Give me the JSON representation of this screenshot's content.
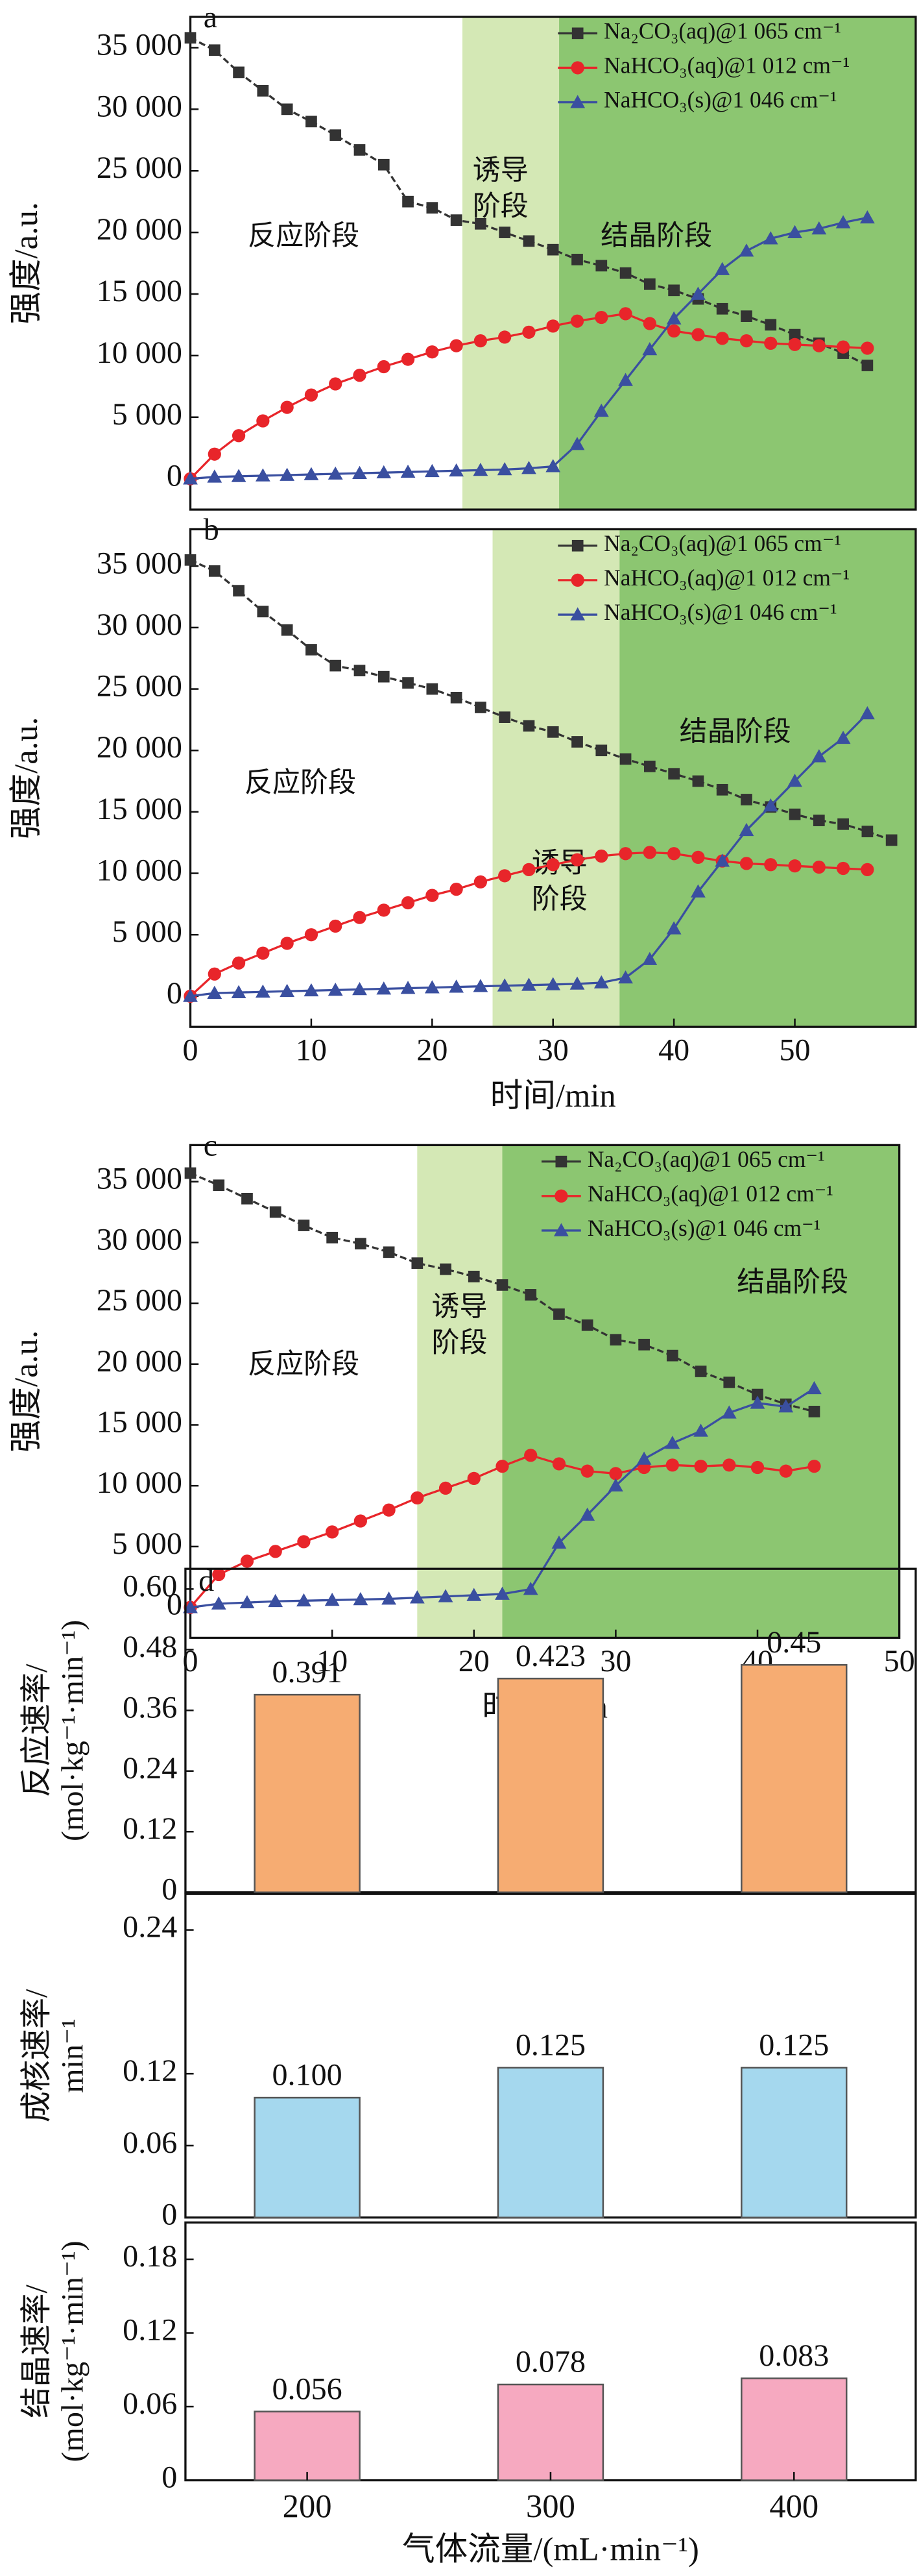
{
  "chart_data": [
    {
      "type": "line",
      "panel": "a",
      "ylabel": "强度/a.u.",
      "legend": "upper right",
      "x": [
        0,
        2,
        4,
        6,
        8,
        10,
        12,
        14,
        16,
        18,
        20,
        22,
        24,
        26,
        28,
        30,
        32,
        34,
        36,
        38,
        40,
        42,
        44,
        46,
        48,
        50,
        52,
        54,
        56
      ],
      "xlim": [
        0,
        60
      ],
      "ylim": [
        -2500,
        37500
      ],
      "yticks": [
        0,
        {
          "value": 5000,
          "label": "5 000"
        },
        {
          "value": 10000,
          "label": "10 000"
        },
        {
          "value": 15000,
          "label": "15 000"
        },
        {
          "value": 20000,
          "label": "20 000"
        },
        {
          "value": 25000,
          "label": "25 000"
        },
        {
          "value": 30000,
          "label": "30 000"
        },
        {
          "value": 35000,
          "label": "35 000"
        }
      ],
      "stages": [
        {
          "label": [
            "反应阶段"
          ],
          "x": [
            0,
            22.5
          ],
          "color": "#ffffff"
        },
        {
          "label": [
            "诱导",
            "阶段"
          ],
          "x": [
            22.5,
            30.5
          ],
          "color": "#d4e8b5"
        },
        {
          "label": [
            "结晶阶段"
          ],
          "x": [
            30.5,
            60
          ],
          "color": "#8cc671"
        }
      ],
      "series": [
        {
          "name": "Na₂CO₃(aq)@1 065 cm⁻¹",
          "color": "#333333",
          "marker": "square",
          "values": [
            35800,
            34800,
            33000,
            31500,
            30000,
            29000,
            27900,
            26700,
            25500,
            22500,
            22000,
            21000,
            20700,
            20000,
            19300,
            18600,
            17800,
            17300,
            16700,
            15800,
            15300,
            14600,
            13800,
            13200,
            12500,
            11700,
            11000,
            10200,
            9200
          ]
        },
        {
          "name": "NaHCO₃(aq)@1 012 cm⁻¹",
          "color": "#e8252a",
          "marker": "circle",
          "values": [
            0,
            2000,
            3500,
            4700,
            5800,
            6800,
            7700,
            8400,
            9100,
            9700,
            10300,
            10800,
            11200,
            11500,
            11900,
            12400,
            12800,
            13100,
            13400,
            12600,
            12000,
            11700,
            11400,
            11200,
            11000,
            10900,
            10800,
            10700,
            10600
          ]
        },
        {
          "name": "NaHCO₃(s)@1 046 cm⁻¹",
          "color": "#3a4fa0",
          "marker": "triangle",
          "values": [
            0,
            150,
            200,
            250,
            300,
            350,
            400,
            450,
            500,
            550,
            600,
            650,
            700,
            750,
            850,
            1000,
            2800,
            5500,
            8000,
            10500,
            13000,
            15000,
            17000,
            18500,
            19500,
            20000,
            20300,
            20800,
            21200
          ]
        }
      ]
    },
    {
      "type": "line",
      "panel": "b",
      "ylabel": "强度/a.u.",
      "xlabel": "时间/min",
      "legend": "upper right",
      "x": [
        0,
        2,
        4,
        6,
        8,
        10,
        12,
        14,
        16,
        18,
        20,
        22,
        24,
        26,
        28,
        30,
        32,
        34,
        36,
        38,
        40,
        42,
        44,
        46,
        48,
        50,
        52,
        54,
        56,
        58
      ],
      "xlim": [
        0,
        60
      ],
      "xticks": [
        0,
        10,
        20,
        30,
        40,
        50
      ],
      "ylim": [
        -2500,
        38000
      ],
      "yticks": [
        0,
        {
          "value": 5000,
          "label": "5 000"
        },
        {
          "value": 10000,
          "label": "10 000"
        },
        {
          "value": 15000,
          "label": "15 000"
        },
        {
          "value": 20000,
          "label": "20 000"
        },
        {
          "value": 25000,
          "label": "25 000"
        },
        {
          "value": 30000,
          "label": "30 000"
        },
        {
          "value": 35000,
          "label": "35 000"
        }
      ],
      "stages": [
        {
          "label": [
            "反应阶段"
          ],
          "x": [
            0,
            25
          ],
          "color": "#ffffff"
        },
        {
          "label": [
            "诱导",
            "阶段"
          ],
          "x": [
            25,
            35.5
          ],
          "color": "#d4e8b5"
        },
        {
          "label": [
            "结晶阶段"
          ],
          "x": [
            35.5,
            60
          ],
          "color": "#8cc671"
        }
      ],
      "series": [
        {
          "name": "Na₂CO₃(aq)@1 065 cm⁻¹",
          "color": "#333333",
          "marker": "square",
          "values": [
            35500,
            34600,
            33000,
            31300,
            29800,
            28200,
            26900,
            26500,
            26000,
            25500,
            25000,
            24300,
            23500,
            22700,
            22000,
            21500,
            20700,
            20000,
            19300,
            18700,
            18100,
            17500,
            16800,
            16000,
            15400,
            14800,
            14300,
            14000,
            13400,
            12700
          ]
        },
        {
          "name": "NaHCO₃(aq)@1 012 cm⁻¹",
          "color": "#e8252a",
          "marker": "circle",
          "values": [
            0,
            1800,
            2700,
            3500,
            4300,
            5000,
            5700,
            6400,
            7000,
            7600,
            8200,
            8700,
            9300,
            9800,
            10300,
            10700,
            11100,
            11400,
            11600,
            11700,
            11600,
            11300,
            11000,
            10800,
            10700,
            10600,
            10500,
            10400,
            10300,
            null
          ]
        },
        {
          "name": "NaHCO₃(s)@1 046 cm⁻¹",
          "color": "#3a4fa0",
          "marker": "triangle",
          "values": [
            0,
            250,
            300,
            350,
            400,
            450,
            500,
            550,
            600,
            650,
            700,
            750,
            800,
            850,
            900,
            950,
            1000,
            1100,
            1500,
            3000,
            5500,
            8500,
            11000,
            13500,
            15500,
            17500,
            19500,
            21000,
            23000,
            null
          ]
        }
      ]
    },
    {
      "type": "line",
      "panel": "c",
      "ylabel": "强度/a.u.",
      "xlabel": "时间/min",
      "legend": "upper right",
      "x": [
        0,
        2,
        4,
        6,
        8,
        10,
        12,
        14,
        16,
        18,
        20,
        22,
        24,
        26,
        28,
        30,
        32,
        34,
        36,
        38,
        40,
        42,
        44
      ],
      "xlim": [
        0,
        50
      ],
      "xticks": [
        0,
        10,
        20,
        30,
        40,
        50
      ],
      "ylim": [
        -2500,
        38000
      ],
      "yticks": [
        0,
        {
          "value": 5000,
          "label": "5 000"
        },
        {
          "value": 10000,
          "label": "10 000"
        },
        {
          "value": 15000,
          "label": "15 000"
        },
        {
          "value": 20000,
          "label": "20 000"
        },
        {
          "value": 25000,
          "label": "25 000"
        },
        {
          "value": 30000,
          "label": "30 000"
        },
        {
          "value": 35000,
          "label": "35 000"
        }
      ],
      "stages": [
        {
          "label": [
            "反应阶段"
          ],
          "x": [
            0,
            16
          ],
          "color": "#ffffff"
        },
        {
          "label": [
            "诱导",
            "阶段"
          ],
          "x": [
            16,
            22
          ],
          "color": "#d4e8b5"
        },
        {
          "label": [
            "结晶阶段"
          ],
          "x": [
            22,
            50
          ],
          "color": "#8cc671"
        }
      ],
      "series": [
        {
          "name": "Na₂CO₃(aq)@1 065 cm⁻¹",
          "color": "#333333",
          "marker": "square",
          "values": [
            35700,
            34700,
            33600,
            32500,
            31400,
            30400,
            29900,
            29200,
            28300,
            27800,
            27200,
            26500,
            25700,
            24100,
            23200,
            22000,
            21600,
            20700,
            19400,
            18500,
            17500,
            16700,
            16100
          ]
        },
        {
          "name": "NaHCO₃(aq)@1 012 cm⁻¹",
          "color": "#e8252a",
          "marker": "circle",
          "values": [
            0,
            2700,
            3800,
            4600,
            5400,
            6200,
            7100,
            8000,
            9000,
            9800,
            10600,
            11600,
            12500,
            11800,
            11200,
            11000,
            11500,
            11700,
            11600,
            11700,
            11500,
            11200,
            11600
          ]
        },
        {
          "name": "NaHCO₃(s)@1 046 cm⁻¹",
          "color": "#3a4fa0",
          "marker": "triangle",
          "values": [
            0,
            300,
            400,
            500,
            550,
            600,
            650,
            700,
            800,
            900,
            1000,
            1100,
            1500,
            5300,
            7600,
            10000,
            12200,
            13500,
            14500,
            16000,
            16800,
            16500,
            18000
          ]
        }
      ]
    },
    {
      "type": "bar",
      "panel": "d",
      "ylabel": [
        "反应速率/",
        "(mol·kg⁻¹·min⁻¹)"
      ],
      "color": "#f6ac72",
      "values": [
        0.391,
        0.423,
        0.45
      ],
      "ylim": [
        0,
        0.64
      ],
      "yticks": [
        0,
        0.12,
        0.24,
        0.36,
        0.48,
        {
          "value": 0.6,
          "label": "0.60"
        }
      ]
    },
    {
      "type": "bar",
      "ylabel": [
        "成核速率/",
        "min⁻¹"
      ],
      "color": "#a5d8ee",
      "values": [
        0.1,
        0.125,
        0.125
      ],
      "value_labels": [
        "0.100",
        "0.125",
        "0.125"
      ],
      "ylim": [
        0,
        0.27
      ],
      "yticks": [
        0,
        0.06,
        0.12,
        0.24
      ]
    },
    {
      "type": "bar",
      "ylabel": [
        "结晶速率/",
        "(mol·kg⁻¹·min⁻¹)"
      ],
      "color": "#f6a9c0",
      "values": [
        0.056,
        0.078,
        0.083
      ],
      "ylim": [
        0,
        0.21
      ],
      "yticks": [
        0,
        0.06,
        0.12,
        0.18
      ],
      "categories": [
        "200",
        "300",
        "400"
      ],
      "xlabel": "气体流量/(mL·min⁻¹)"
    }
  ]
}
